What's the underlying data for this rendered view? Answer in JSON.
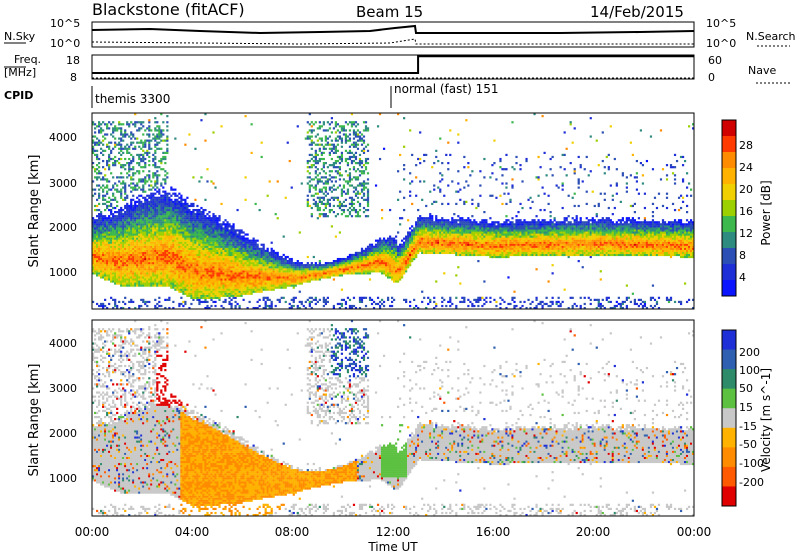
{
  "header": {
    "station": "Blackstone (fitACF)",
    "beam": "Beam 15",
    "date": "14/Feb/2015"
  },
  "noise_panel": {
    "left_label": "N.Sky",
    "right_label": "N.Search",
    "left_ticks": [
      "10^5",
      "10^0"
    ],
    "right_ticks": [
      "10^5",
      "10^0"
    ]
  },
  "freq_panel": {
    "left_label_1": "Freq.",
    "left_label_2": "[MHz]",
    "left_ticks": [
      "18",
      "8"
    ],
    "right_label": "Nave",
    "right_ticks": [
      "60",
      "0"
    ]
  },
  "cpid_panel": {
    "label": "CPID",
    "modes": [
      {
        "name": "themis 3300",
        "start_hour": 0,
        "end_hour": 12.1
      },
      {
        "name": "normal (fast) 151",
        "start_hour": 12.1,
        "end_hour": 24
      }
    ]
  },
  "x_axis": {
    "label": "Time UT",
    "ticks": [
      "00:00",
      "04:00",
      "08:00",
      "12:00",
      "16:00",
      "20:00",
      "00:00"
    ]
  },
  "power_panel": {
    "ylabel": "Slant Range [km]",
    "yticks": [
      "4000",
      "3000",
      "2000",
      "1000"
    ],
    "colorbar_title": "Power [dB]",
    "colorbar_labels": [
      "28",
      "24",
      "20",
      "16",
      "12",
      "8",
      "4"
    ],
    "colors": [
      "#d10000",
      "#ff3a00",
      "#ff8c00",
      "#ffb300",
      "#f0d000",
      "#9cd000",
      "#3cb84c",
      "#2e8b80",
      "#2b4fb5",
      "#1f2fd8",
      "#0a14ff"
    ]
  },
  "velocity_panel": {
    "ylabel": "Slant Range [km]",
    "yticks": [
      "4000",
      "3000",
      "2000",
      "1000"
    ],
    "colorbar_title": "Velocity [m s^-1]",
    "colorbar_labels": [
      "200",
      "100",
      "50",
      "15",
      "-15",
      "-50",
      "-100",
      "-200"
    ],
    "colors": [
      "#1f2fd8",
      "#2e5fb0",
      "#2e8b6a",
      "#5cc040",
      "#c8c8c8",
      "#ffb300",
      "#ff8c00",
      "#ff5a00",
      "#e00000"
    ]
  },
  "chart_data": [
    {
      "type": "line",
      "title": "Blackstone (fitACF) Beam 15 14/Feb/2015",
      "xlabel": "Time UT",
      "x": [
        0,
        4,
        8,
        12,
        13,
        16,
        20,
        24
      ],
      "series": [
        {
          "name": "Freq.",
          "values": [
            10.5,
            10.5,
            10.5,
            10.5,
            17.5,
            17.5,
            17.5,
            17.5
          ]
        }
      ],
      "ylim": [
        8,
        18
      ]
    },
    {
      "type": "heatmap",
      "title": "Power [dB]",
      "xlabel": "Time UT",
      "ylabel": "Slant Range [km]",
      "xlim": [
        0,
        24
      ],
      "ylim": [
        180,
        4500
      ],
      "zlim": [
        0,
        30
      ],
      "echo_band_center_km": {
        "x": [
          0,
          1,
          2,
          3,
          4,
          6,
          8,
          10,
          11.5,
          12.2,
          13,
          16,
          20,
          24
        ],
        "y": [
          1250,
          1100,
          1150,
          1200,
          900,
          800,
          800,
          1000,
          1150,
          950,
          1600,
          1500,
          1550,
          1500
        ]
      }
    },
    {
      "type": "heatmap",
      "title": "Velocity [m s^-1]",
      "xlabel": "Time UT",
      "ylabel": "Slant Range [km]",
      "xlim": [
        0,
        24
      ],
      "ylim": [
        180,
        4500
      ],
      "zlim": [
        -200,
        200
      ]
    }
  ]
}
